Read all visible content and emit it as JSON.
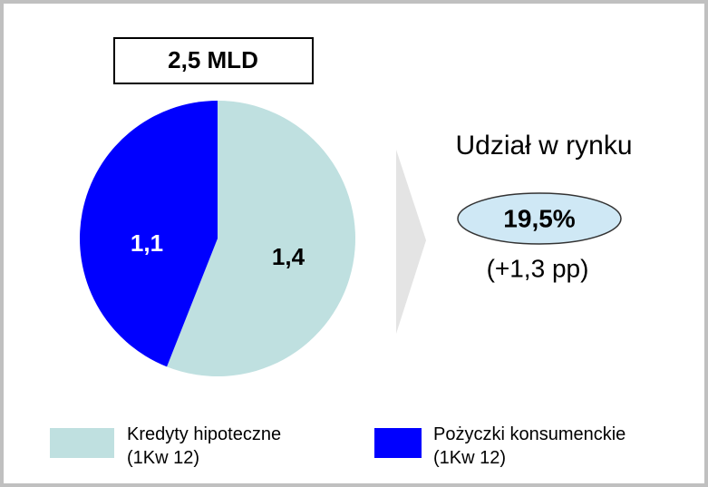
{
  "chart_data": {
    "type": "pie",
    "title": "2,5 MLD",
    "categories": [
      "Kredyty hipoteczne\n(1Kw 12)",
      "Pożyczki konsumenckie\n(1Kw 12)"
    ],
    "values": [
      1.4,
      1.1
    ],
    "value_labels": [
      "1,4",
      "1,1"
    ],
    "colors": [
      "#bfe0e0",
      "#0000ff"
    ],
    "annotations": [
      "Udział w rynku",
      "19,5%",
      "(+1,3 pp)"
    ]
  }
}
